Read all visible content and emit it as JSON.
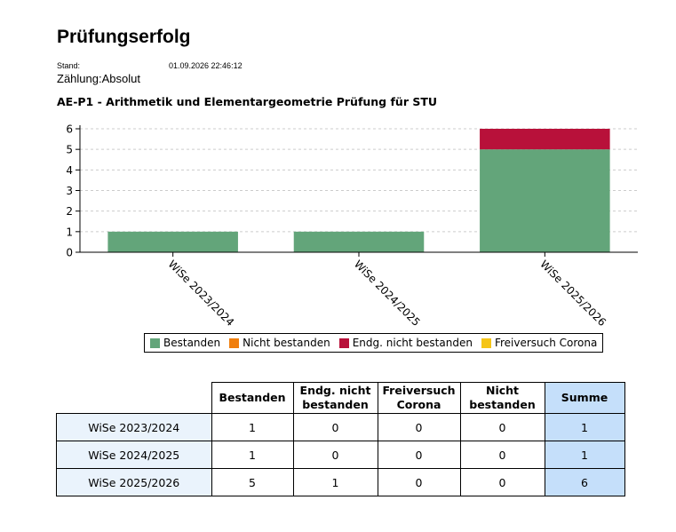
{
  "page": {
    "title": "Prüfungserfolg",
    "stand_label": "Stand:",
    "stand_value": "01.09.2026 22:46:12",
    "count_label": "Zählung:Absolut"
  },
  "chart_data": {
    "type": "bar",
    "stacked": true,
    "title": "AE-P1 - Arithmetik und Elementargeometrie Prüfung für STU",
    "xlabel": "",
    "ylabel": "",
    "categories": [
      "WiSe 2023/2024",
      "WiSe 2024/2025",
      "WiSe 2025/2026"
    ],
    "series": [
      {
        "name": "Bestanden",
        "color": "#63a57a",
        "values": [
          1,
          1,
          5
        ]
      },
      {
        "name": "Nicht bestanden",
        "color": "#f07f0f",
        "values": [
          0,
          0,
          0
        ]
      },
      {
        "name": "Endg. nicht bestanden",
        "color": "#b8113a",
        "values": [
          0,
          0,
          1
        ]
      },
      {
        "name": "Freiversuch Corona",
        "color": "#f5c518",
        "values": [
          0,
          0,
          0
        ]
      }
    ],
    "ylim": [
      0,
      6
    ],
    "yticks": [
      0,
      1,
      2,
      3,
      4,
      5,
      6
    ],
    "grid": true,
    "legend_position": "bottom"
  },
  "table": {
    "headers": [
      "",
      "Bestanden",
      "Endg. nicht bestanden",
      "Freiversuch Corona",
      "Nicht bestanden",
      "Summe"
    ],
    "rows": [
      {
        "label": "WiSe 2023/2024",
        "cells": [
          "1",
          "0",
          "0",
          "0",
          "1"
        ]
      },
      {
        "label": "WiSe 2024/2025",
        "cells": [
          "1",
          "0",
          "0",
          "0",
          "1"
        ]
      },
      {
        "label": "WiSe 2025/2026",
        "cells": [
          "5",
          "1",
          "0",
          "0",
          "6"
        ]
      }
    ]
  }
}
